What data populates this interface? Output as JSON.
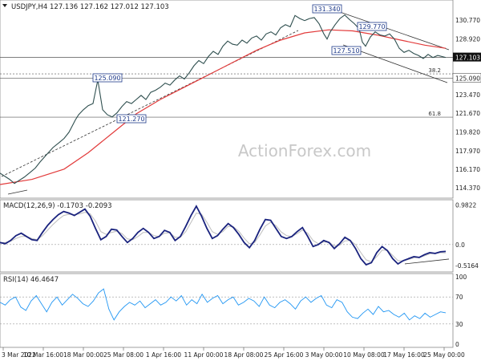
{
  "chart_data": [
    {
      "type": "line",
      "panel": "price",
      "title": "USDJPY,H4  127.136 127.162 127.012 127.103",
      "last_price": "127.103",
      "watermark": "ActionForex.com",
      "ylim": [
        113.6,
        132.4
      ],
      "y_ticks": [
        "130.770",
        "128.920",
        "127.103",
        "125.090",
        "123.470",
        "121.670",
        "119.820",
        "117.970",
        "116.170",
        "114.370"
      ],
      "tick_values": [
        130.77,
        128.92,
        125.09,
        123.47,
        121.67,
        119.82,
        117.97,
        116.17,
        114.37
      ],
      "grid": false,
      "price_series": {
        "x": [
          0,
          12,
          18,
          22,
          30,
          38,
          44,
          50,
          58,
          66,
          74,
          80,
          86,
          90,
          94,
          98,
          104,
          110,
          116,
          122,
          128,
          134,
          140,
          146,
          152,
          158,
          164,
          170,
          176,
          182,
          188,
          194,
          200,
          206,
          212,
          218,
          224,
          230,
          236,
          242,
          248,
          254,
          260,
          266,
          272,
          278,
          284,
          290,
          296,
          302,
          308,
          314,
          320,
          326,
          332,
          338,
          344,
          350,
          356,
          362,
          368,
          374,
          380,
          386,
          392,
          398,
          404,
          408,
          412,
          418,
          424,
          430,
          436,
          442,
          448,
          452,
          456,
          462,
          468,
          474,
          480,
          486,
          492,
          498,
          504,
          510,
          516,
          522,
          528,
          534,
          540,
          546,
          556
        ],
        "y": [
          115.8,
          115.2,
          114.8,
          115.0,
          115.4,
          115.9,
          116.3,
          116.9,
          117.6,
          118.3,
          118.8,
          119.2,
          119.8,
          120.4,
          121.0,
          121.5,
          122.0,
          122.4,
          122.6,
          124.9,
          122.0,
          121.5,
          121.3,
          121.7,
          122.3,
          122.8,
          122.6,
          123.0,
          123.4,
          123.0,
          123.7,
          123.9,
          124.2,
          124.6,
          124.4,
          124.9,
          125.3,
          125.0,
          125.6,
          126.3,
          126.8,
          126.5,
          127.2,
          127.7,
          127.4,
          128.2,
          128.7,
          128.4,
          128.3,
          128.8,
          128.5,
          129.0,
          129.2,
          128.8,
          129.4,
          129.6,
          129.3,
          130.0,
          130.3,
          130.1,
          131.2,
          130.9,
          130.7,
          130.9,
          131.0,
          130.4,
          129.4,
          128.9,
          129.6,
          130.3,
          130.9,
          131.25,
          130.8,
          130.4,
          129.9,
          128.6,
          128.2,
          129.1,
          129.6,
          129.3,
          129.2,
          129.4,
          128.9,
          128.0,
          127.6,
          127.8,
          127.5,
          127.3,
          127.0,
          127.4,
          127.1,
          127.3,
          127.103
        ]
      },
      "ema_series": {
        "x": [
          0,
          40,
          80,
          110,
          140,
          170,
          200,
          230,
          260,
          290,
          320,
          350,
          380,
          410,
          440,
          470,
          500,
          530,
          556
        ],
        "y": [
          114.7,
          115.2,
          116.2,
          117.8,
          119.7,
          121.6,
          123.0,
          124.2,
          125.4,
          126.6,
          127.8,
          128.8,
          129.5,
          129.8,
          129.7,
          129.3,
          128.8,
          128.3,
          128.0
        ]
      },
      "hlines": [
        {
          "value": 127.103,
          "label": "",
          "style": "solid"
        },
        {
          "value": 125.5,
          "label": "38.2",
          "style": "dotted"
        },
        {
          "value": 125.09,
          "label": "",
          "style": "solid"
        },
        {
          "value": 121.27,
          "label": "61.8",
          "style": "solid"
        }
      ],
      "annotations": [
        {
          "text": "131.340",
          "value": 131.34
        },
        {
          "text": "129.770",
          "value": 129.77
        },
        {
          "text": "127.510",
          "value": 127.51
        },
        {
          "text": "125.090",
          "value": 125.09
        },
        {
          "text": "121.270",
          "value": 121.27
        }
      ],
      "tag": "125.090"
    },
    {
      "type": "line",
      "panel": "macd",
      "title": "MACD(12,26,9) -0.1703 -0.2093",
      "ylim": [
        -0.62,
        1.05
      ],
      "y_ticks": [
        "0.9822",
        "0.0",
        "-0.5164"
      ],
      "tick_values": [
        0.9822,
        0.0,
        -0.5164
      ],
      "macd": [
        0.05,
        0.02,
        0.1,
        0.22,
        0.28,
        0.2,
        0.12,
        0.1,
        0.3,
        0.48,
        0.62,
        0.74,
        0.82,
        0.78,
        0.72,
        0.8,
        0.88,
        0.7,
        0.4,
        0.12,
        0.2,
        0.38,
        0.36,
        0.2,
        0.05,
        0.15,
        0.3,
        0.4,
        0.3,
        0.15,
        0.2,
        0.35,
        0.3,
        0.1,
        0.2,
        0.45,
        0.72,
        0.95,
        0.7,
        0.4,
        0.15,
        0.22,
        0.38,
        0.52,
        0.42,
        0.25,
        0.05,
        -0.08,
        0.1,
        0.38,
        0.62,
        0.6,
        0.4,
        0.2,
        0.15,
        0.2,
        0.32,
        0.42,
        0.2,
        -0.05,
        0.0,
        0.1,
        0.05,
        -0.1,
        0.02,
        0.18,
        0.1,
        -0.1,
        -0.35,
        -0.5,
        -0.45,
        -0.2,
        -0.05,
        -0.15,
        -0.35,
        -0.48,
        -0.4,
        -0.35,
        -0.3,
        -0.32,
        -0.25,
        -0.2,
        -0.22,
        -0.18,
        -0.17
      ],
      "signal": [
        0.04,
        0.05,
        0.08,
        0.15,
        0.2,
        0.2,
        0.15,
        0.12,
        0.22,
        0.36,
        0.5,
        0.62,
        0.72,
        0.75,
        0.74,
        0.76,
        0.8,
        0.76,
        0.58,
        0.32,
        0.25,
        0.3,
        0.33,
        0.27,
        0.14,
        0.12,
        0.2,
        0.3,
        0.3,
        0.22,
        0.2,
        0.28,
        0.29,
        0.18,
        0.18,
        0.32,
        0.55,
        0.78,
        0.75,
        0.55,
        0.32,
        0.25,
        0.32,
        0.45,
        0.44,
        0.33,
        0.16,
        0.02,
        0.05,
        0.24,
        0.46,
        0.55,
        0.47,
        0.31,
        0.22,
        0.2,
        0.27,
        0.36,
        0.28,
        0.1,
        0.02,
        0.06,
        0.06,
        -0.04,
        -0.02,
        0.09,
        0.1,
        0.0,
        -0.2,
        -0.38,
        -0.43,
        -0.3,
        -0.14,
        -0.14,
        -0.27,
        -0.4,
        -0.41,
        -0.37,
        -0.33,
        -0.32,
        -0.28,
        -0.23,
        -0.22,
        -0.2,
        -0.209
      ]
    },
    {
      "type": "line",
      "panel": "rsi",
      "title": "RSI(14) 46.4647",
      "ylim": [
        0,
        100
      ],
      "y_ticks": [
        "100",
        "70",
        "30",
        "0"
      ],
      "tick_values": [
        100,
        70,
        30,
        0
      ],
      "values": [
        62,
        58,
        66,
        70,
        55,
        50,
        64,
        72,
        60,
        48,
        62,
        70,
        58,
        66,
        74,
        68,
        60,
        56,
        64,
        76,
        82,
        52,
        36,
        48,
        56,
        62,
        58,
        64,
        54,
        60,
        66,
        58,
        62,
        70,
        64,
        72,
        58,
        66,
        60,
        74,
        62,
        68,
        72,
        60,
        66,
        70,
        58,
        62,
        68,
        64,
        56,
        70,
        58,
        54,
        62,
        66,
        60,
        52,
        64,
        70,
        62,
        68,
        72,
        58,
        54,
        66,
        62,
        48,
        40,
        38,
        46,
        52,
        44,
        56,
        48,
        50,
        44,
        40,
        46,
        36,
        42,
        38,
        46,
        40,
        44,
        48,
        46.5
      ]
    },
    {
      "type": "axis",
      "panel": "x-axis",
      "x_ticks": [
        "3 Mar 2022",
        "10 Mar 16:00",
        "18 Mar 00:00",
        "25 Mar 08:00",
        "1 Apr 16:00",
        "11 Apr 00:00",
        "18 Apr 08:00",
        "25 Apr 16:00",
        "3 May 00:00",
        "10 May 08:00",
        "17 May 16:00",
        "25 May 00:00"
      ]
    }
  ],
  "colors": {
    "price": "#2f4f4f",
    "ema": "#e23b3b",
    "trend": "#333333",
    "macd": "#1a237e",
    "signal": "#bdbdbd",
    "rsi": "#2196f3",
    "label_box": "#1e3a8a",
    "watermark": "#c8c8c8",
    "axis_text": "#222222",
    "tag_bg": "#111111"
  }
}
